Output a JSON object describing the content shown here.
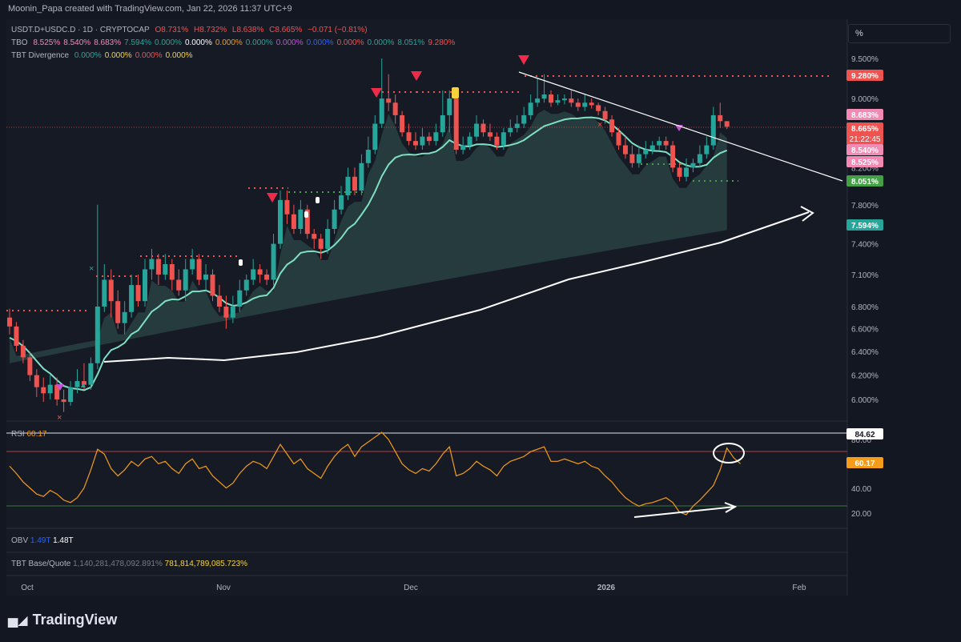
{
  "header": {
    "credit": "Moonin_Papa created with TradingView.com, Jan 22, 2026 11:37 UTC+9"
  },
  "legend": {
    "symbol": "USDT.D+USDC.D · 1D · CRYPTOCAP",
    "ohlc": {
      "o": "O8.731%",
      "h": "H8.732%",
      "l": "L8.638%",
      "c": "C8.665%",
      "chg": "−0.071 (−0.81%)"
    },
    "tbo": {
      "name": "TBO",
      "values": [
        "8.525%",
        "8.540%",
        "8.683%",
        "7.594%",
        "0.000%",
        "0.000%",
        "0.000%",
        "0.000%",
        "0.000%",
        "0.000%",
        "0.000%",
        "0.000%",
        "8.051%",
        "9.280%"
      ]
    },
    "tbt": {
      "name": "TBT Divergence",
      "values": [
        "0.000%",
        "0.000%",
        "0.000%",
        "0.000%"
      ]
    }
  },
  "scale_button": "%",
  "colors": {
    "up": "#26a69a",
    "down": "#ef5350",
    "bg": "#131722",
    "ema": "#7fe0c4",
    "rsi": "#f59c1a",
    "pink": "#f28ab4"
  },
  "chart_data": {
    "type": "candlestick",
    "x_labels": [
      "Oct",
      "Nov",
      "Dec",
      "2026",
      "Feb"
    ],
    "y_ticks": [
      "9.500%",
      "9.000%",
      "8.600%",
      "8.200%",
      "7.800%",
      "7.400%",
      "7.100%",
      "6.800%",
      "6.600%",
      "6.400%",
      "6.200%",
      "6.000%"
    ],
    "y_scale": "log",
    "candles": [
      [
        6.7,
        6.62,
        6.78,
        6.55
      ],
      [
        6.62,
        6.45,
        6.66,
        6.4
      ],
      [
        6.45,
        6.35,
        6.5,
        6.3
      ],
      [
        6.35,
        6.2,
        6.4,
        6.15
      ],
      [
        6.2,
        6.1,
        6.25,
        6.02
      ],
      [
        6.1,
        6.05,
        6.18,
        5.98
      ],
      [
        6.05,
        6.12,
        6.2,
        6.0
      ],
      [
        6.12,
        6.0,
        6.18,
        5.95
      ],
      [
        6.0,
        5.98,
        6.08,
        5.9
      ],
      [
        5.98,
        6.1,
        6.15,
        5.95
      ],
      [
        6.1,
        6.15,
        6.25,
        6.05
      ],
      [
        6.15,
        6.12,
        6.3,
        6.08
      ],
      [
        6.12,
        6.3,
        6.35,
        6.08
      ],
      [
        6.3,
        6.8,
        7.8,
        6.25
      ],
      [
        6.8,
        7.05,
        7.2,
        6.75
      ],
      [
        7.05,
        6.85,
        7.15,
        6.7
      ],
      [
        6.85,
        6.65,
        6.95,
        6.6
      ],
      [
        6.65,
        6.75,
        6.85,
        6.55
      ],
      [
        6.75,
        7.0,
        7.1,
        6.7
      ],
      [
        7.0,
        6.85,
        7.1,
        6.8
      ],
      [
        6.85,
        7.15,
        7.25,
        6.8
      ],
      [
        7.15,
        7.25,
        7.35,
        7.05
      ],
      [
        7.25,
        7.1,
        7.3,
        7.0
      ],
      [
        7.1,
        7.2,
        7.3,
        7.05
      ],
      [
        7.2,
        7.05,
        7.25,
        6.95
      ],
      [
        7.05,
        6.95,
        7.15,
        6.9
      ],
      [
        6.95,
        7.15,
        7.25,
        6.85
      ],
      [
        7.15,
        7.25,
        7.35,
        7.1
      ],
      [
        7.25,
        7.05,
        7.3,
        7.0
      ],
      [
        7.05,
        7.1,
        7.2,
        6.95
      ],
      [
        7.1,
        6.9,
        7.15,
        6.85
      ],
      [
        6.9,
        6.8,
        7.0,
        6.75
      ],
      [
        6.8,
        6.7,
        6.9,
        6.6
      ],
      [
        6.7,
        6.8,
        6.9,
        6.65
      ],
      [
        6.8,
        6.95,
        7.05,
        6.75
      ],
      [
        6.95,
        7.05,
        7.1,
        6.9
      ],
      [
        7.05,
        7.15,
        7.25,
        7.0
      ],
      [
        7.15,
        7.1,
        7.2,
        7.02
      ],
      [
        7.1,
        7.05,
        7.15,
        7.0
      ],
      [
        7.05,
        7.4,
        7.5,
        7.0
      ],
      [
        7.4,
        7.85,
        7.95,
        7.35
      ],
      [
        7.85,
        7.7,
        7.95,
        7.6
      ],
      [
        7.7,
        7.55,
        7.8,
        7.5
      ],
      [
        7.55,
        7.75,
        7.85,
        7.5
      ],
      [
        7.75,
        7.5,
        7.8,
        7.45
      ],
      [
        7.5,
        7.45,
        7.55,
        7.35
      ],
      [
        7.45,
        7.35,
        7.5,
        7.25
      ],
      [
        7.35,
        7.55,
        7.65,
        7.3
      ],
      [
        7.55,
        7.75,
        7.85,
        7.5
      ],
      [
        7.75,
        7.9,
        8.0,
        7.7
      ],
      [
        7.9,
        8.1,
        8.2,
        7.85
      ],
      [
        8.1,
        7.95,
        8.2,
        7.9
      ],
      [
        7.95,
        8.25,
        8.35,
        7.9
      ],
      [
        8.25,
        8.4,
        8.55,
        8.2
      ],
      [
        8.4,
        8.7,
        8.8,
        8.35
      ],
      [
        8.7,
        9.0,
        9.5,
        8.65
      ],
      [
        9.0,
        8.95,
        9.3,
        8.85
      ],
      [
        8.95,
        8.8,
        9.05,
        8.7
      ],
      [
        8.8,
        8.6,
        8.85,
        8.55
      ],
      [
        8.6,
        8.5,
        8.7,
        8.45
      ],
      [
        8.5,
        8.45,
        8.6,
        8.4
      ],
      [
        8.45,
        8.55,
        8.65,
        8.4
      ],
      [
        8.55,
        8.5,
        8.6,
        8.45
      ],
      [
        8.5,
        8.6,
        8.7,
        8.45
      ],
      [
        8.6,
        8.8,
        9.1,
        8.55
      ],
      [
        8.8,
        9.0,
        9.1,
        8.6
      ],
      [
        9.0,
        8.4,
        9.05,
        8.35
      ],
      [
        8.4,
        8.45,
        8.55,
        8.35
      ],
      [
        8.45,
        8.55,
        8.6,
        8.4
      ],
      [
        8.55,
        8.7,
        8.8,
        8.5
      ],
      [
        8.7,
        8.6,
        8.75,
        8.55
      ],
      [
        8.6,
        8.55,
        8.7,
        8.5
      ],
      [
        8.55,
        8.45,
        8.6,
        8.4
      ],
      [
        8.45,
        8.6,
        8.65,
        8.4
      ],
      [
        8.6,
        8.65,
        8.75,
        8.55
      ],
      [
        8.65,
        8.7,
        8.8,
        8.6
      ],
      [
        8.7,
        8.8,
        8.9,
        8.65
      ],
      [
        8.8,
        8.95,
        9.05,
        8.75
      ],
      [
        8.95,
        9.0,
        9.25,
        8.9
      ],
      [
        9.0,
        9.05,
        9.3,
        8.95
      ],
      [
        9.05,
        8.95,
        9.1,
        8.9
      ],
      [
        8.95,
        8.98,
        9.05,
        8.92
      ],
      [
        8.98,
        9.0,
        9.05,
        8.93
      ],
      [
        9.0,
        8.95,
        9.1,
        8.9
      ],
      [
        8.95,
        8.9,
        9.0,
        8.85
      ],
      [
        8.9,
        8.95,
        9.05,
        8.85
      ],
      [
        8.95,
        8.92,
        9.0,
        8.88
      ],
      [
        8.92,
        8.85,
        8.95,
        8.8
      ],
      [
        8.85,
        8.75,
        8.9,
        8.7
      ],
      [
        8.75,
        8.6,
        8.8,
        8.55
      ],
      [
        8.6,
        8.45,
        8.65,
        8.4
      ],
      [
        8.45,
        8.35,
        8.55,
        8.3
      ],
      [
        8.35,
        8.25,
        8.45,
        8.2
      ],
      [
        8.25,
        8.35,
        8.45,
        8.2
      ],
      [
        8.35,
        8.4,
        8.5,
        8.3
      ],
      [
        8.4,
        8.45,
        8.5,
        8.35
      ],
      [
        8.45,
        8.5,
        8.55,
        8.4
      ],
      [
        8.5,
        8.45,
        8.55,
        8.4
      ],
      [
        8.45,
        8.2,
        8.5,
        8.15
      ],
      [
        8.2,
        8.1,
        8.25,
        8.05
      ],
      [
        8.1,
        8.2,
        8.3,
        8.05
      ],
      [
        8.2,
        8.25,
        8.3,
        8.15
      ],
      [
        8.25,
        8.35,
        8.45,
        8.2
      ],
      [
        8.35,
        8.45,
        8.55,
        8.3
      ],
      [
        8.45,
        8.8,
        8.9,
        8.4
      ],
      [
        8.8,
        8.73,
        8.95,
        8.65
      ],
      [
        8.73,
        8.665,
        8.732,
        8.638
      ]
    ],
    "levels": [
      {
        "label": "9.280%",
        "color": "#ef5350"
      },
      {
        "label": "8.683%",
        "color": "#f28ab4"
      },
      {
        "label": "8.665%",
        "sub": "21:22:45",
        "color": "#ef5350"
      },
      {
        "label": "8.540%",
        "color": "#f28ab4"
      },
      {
        "label": "8.525%",
        "color": "#f28ab4"
      },
      {
        "label": "8.051%",
        "color": "#43a047"
      },
      {
        "label": "7.594%",
        "color": "#26a69a"
      }
    ],
    "rsi": {
      "name": "RSI",
      "value": "60.17",
      "y_ticks": [
        "80.00",
        "40.00",
        "20.00"
      ],
      "upper_label": "84.62",
      "values": [
        58,
        52,
        45,
        40,
        35,
        33,
        38,
        35,
        30,
        28,
        32,
        40,
        55,
        72,
        68,
        56,
        50,
        55,
        62,
        58,
        64,
        66,
        60,
        62,
        56,
        52,
        60,
        64,
        56,
        58,
        50,
        45,
        40,
        44,
        52,
        58,
        62,
        60,
        56,
        66,
        76,
        68,
        60,
        64,
        56,
        52,
        48,
        58,
        66,
        72,
        76,
        66,
        74,
        78,
        82,
        86,
        80,
        70,
        60,
        55,
        52,
        56,
        54,
        60,
        68,
        74,
        50,
        52,
        56,
        62,
        58,
        55,
        50,
        58,
        62,
        64,
        66,
        70,
        72,
        74,
        62,
        62,
        64,
        62,
        60,
        62,
        58,
        56,
        50,
        45,
        38,
        32,
        28,
        25,
        27,
        28,
        30,
        32,
        28,
        20,
        18,
        25,
        30,
        36,
        42,
        55,
        73,
        65,
        60
      ]
    },
    "obv": {
      "name": "OBV",
      "value_a": "1.49T",
      "value_b": "1.48T"
    },
    "tbt_bq": {
      "name": "TBT Base/Quote",
      "value_a": "1,140,281,478,092.891%",
      "value_b": "781,814,789,085.723%"
    }
  },
  "footer": {
    "brand": "TradingView"
  }
}
